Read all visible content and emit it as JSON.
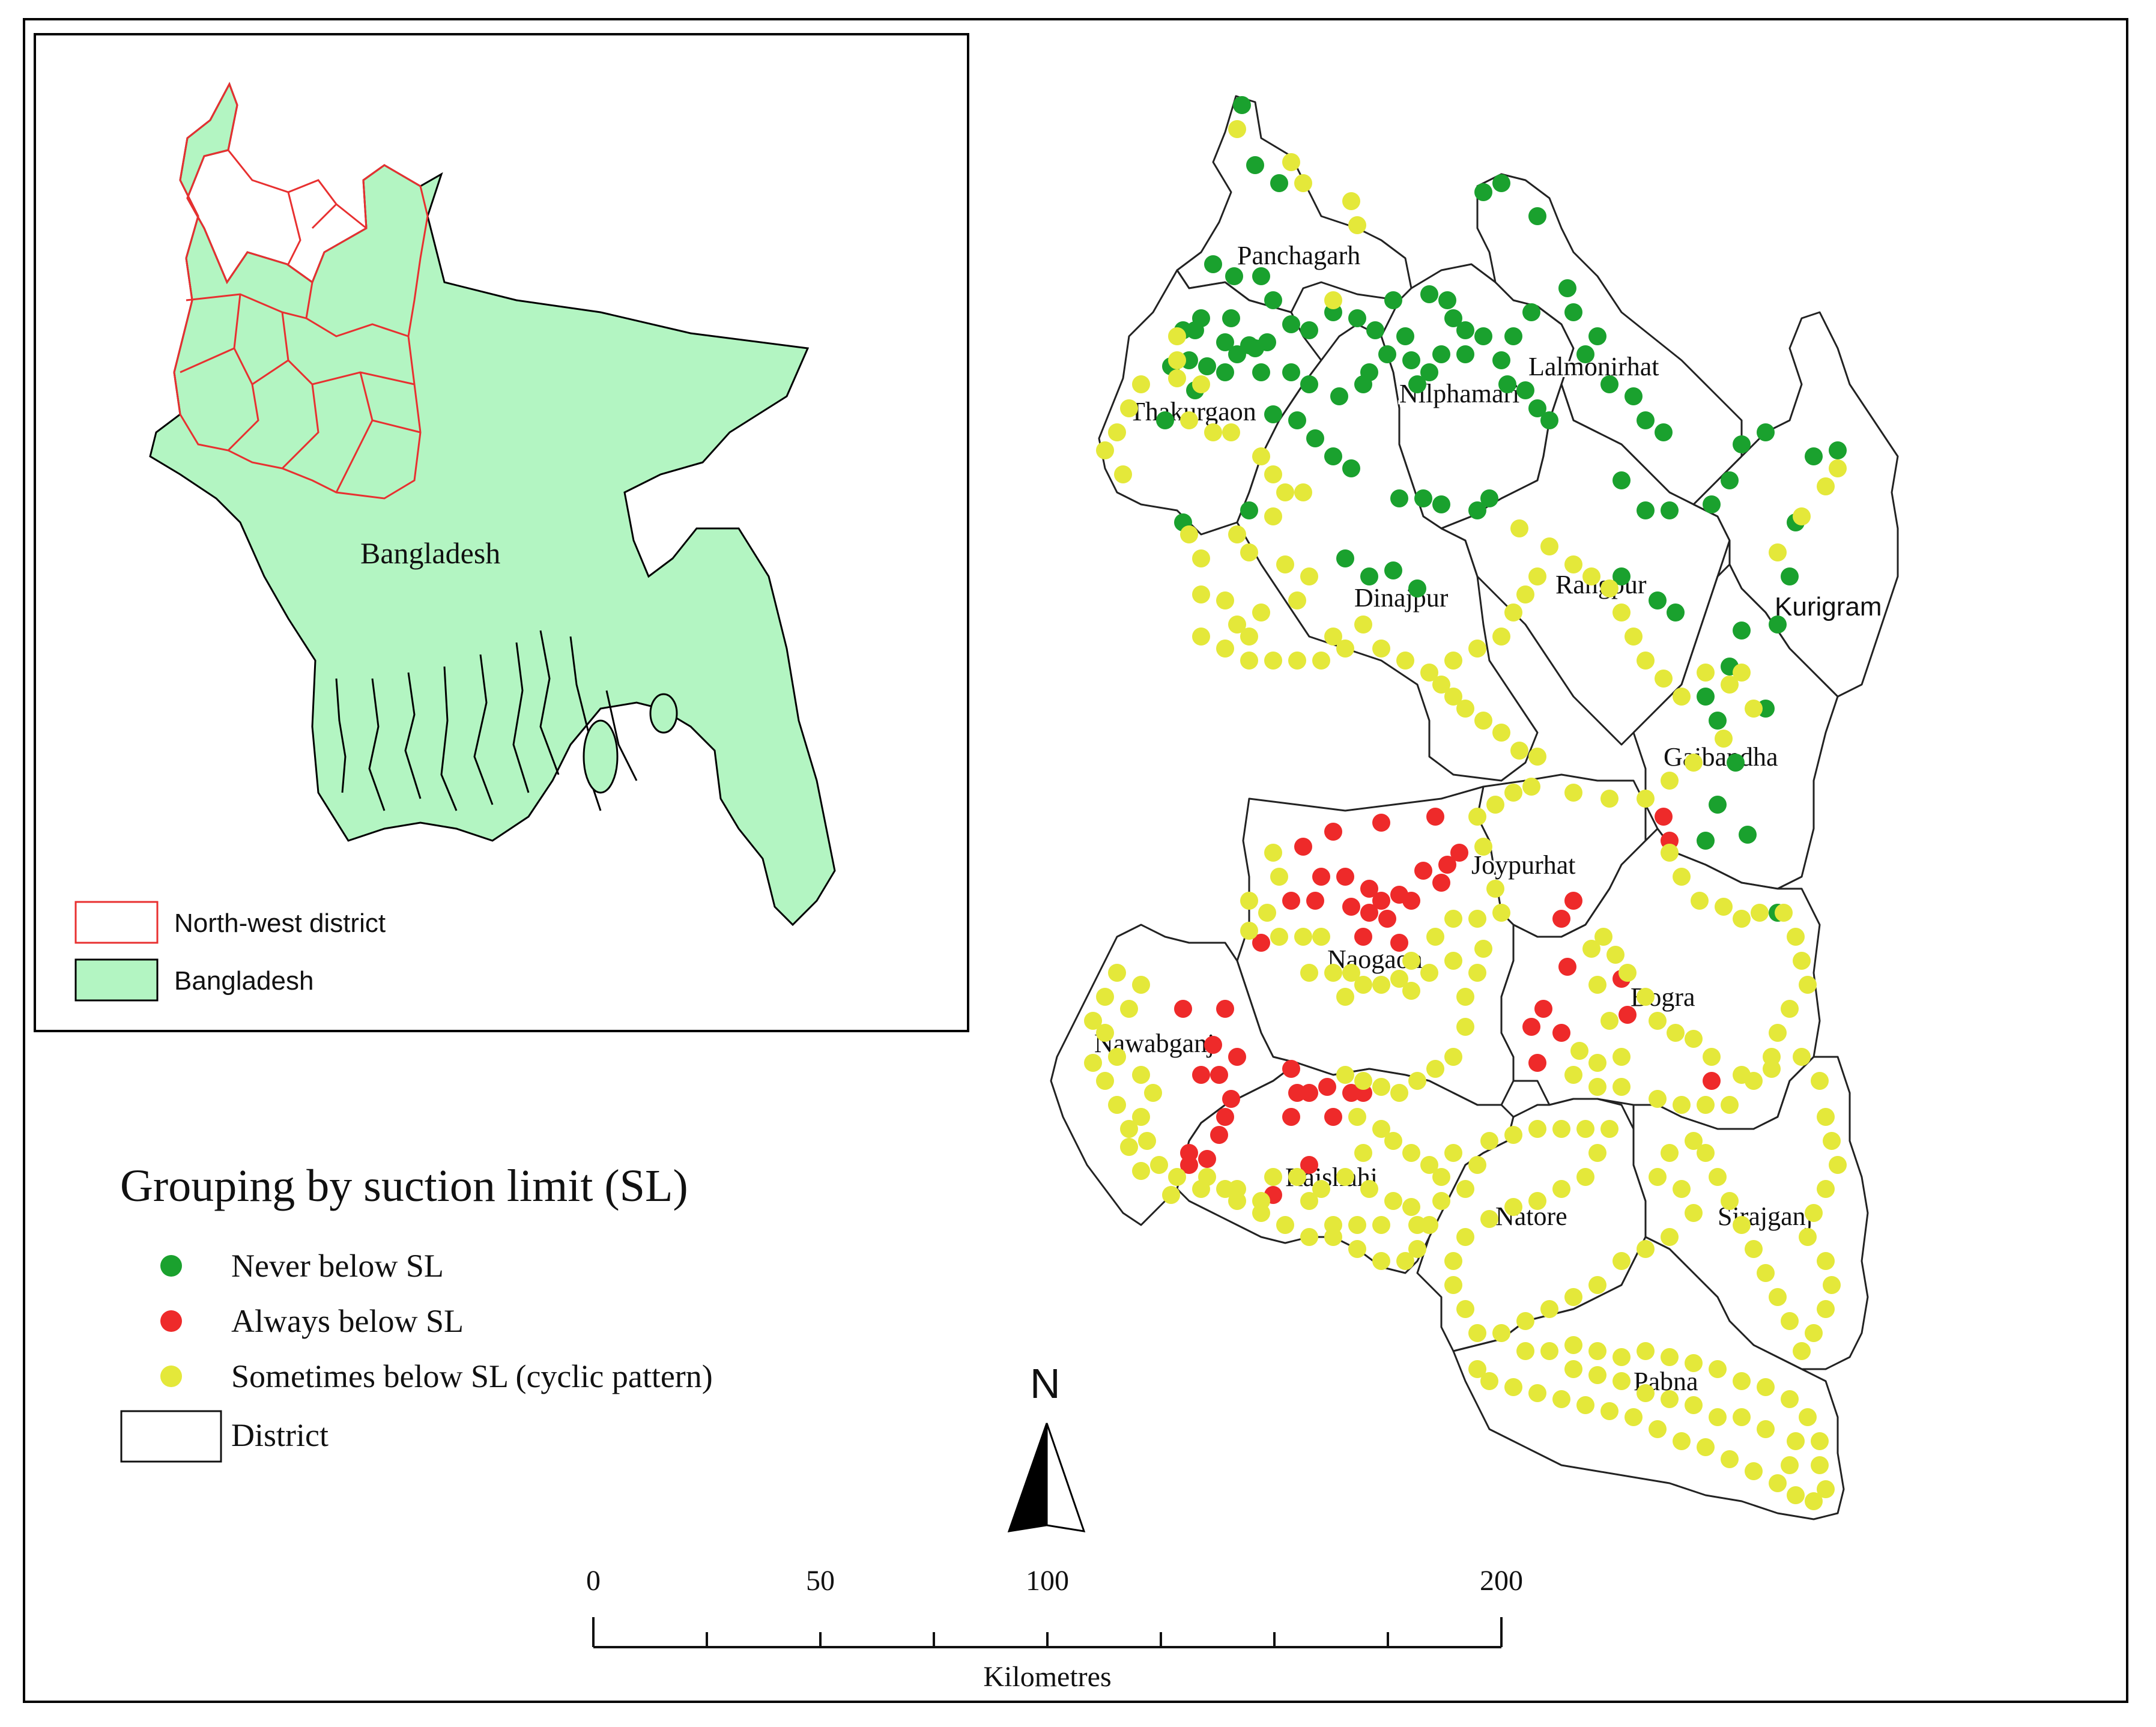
{
  "inset": {
    "country_label": "Bangladesh",
    "legend": [
      {
        "label": "North-west district",
        "fill": "#ffffff",
        "stroke": "#e83030"
      },
      {
        "label": "Bangladesh",
        "fill": "#b3f5c2",
        "stroke": "#000000"
      }
    ]
  },
  "districts": [
    "Panchagarh",
    "Nilphamari",
    "Lalmonirhat",
    "Thakurgaon",
    "Dinajpur",
    "Rangpur",
    "Kurigram",
    "Gaibandha",
    "Joypurhat",
    "Naogaon",
    "Bogra",
    "Nawabganj",
    "Rajshahi",
    "Natore",
    "Sirajganj",
    "Pabna"
  ],
  "legend": {
    "title": "Grouping by suction limit (SL)",
    "items": [
      {
        "label": "Never below SL",
        "color": "#1aa12e",
        "symbol": "dot"
      },
      {
        "label": "Always below SL",
        "color": "#ee2a2a",
        "symbol": "dot"
      },
      {
        "label": "Sometimes below SL (cyclic pattern)",
        "color": "#e4e83a",
        "symbol": "dot"
      },
      {
        "label": "District",
        "color": "#ffffff",
        "symbol": "box"
      }
    ]
  },
  "north_arrow": {
    "label": "N"
  },
  "scale_bar": {
    "ticks": [
      "0",
      "50",
      "100",
      "200"
    ],
    "unit": "Kilometres"
  },
  "colors": {
    "never": "#1aa12e",
    "always": "#ee2a2a",
    "sometimes": "#e4e83a",
    "bangladesh": "#b3f5c2",
    "northwest_border": "#e83030"
  }
}
